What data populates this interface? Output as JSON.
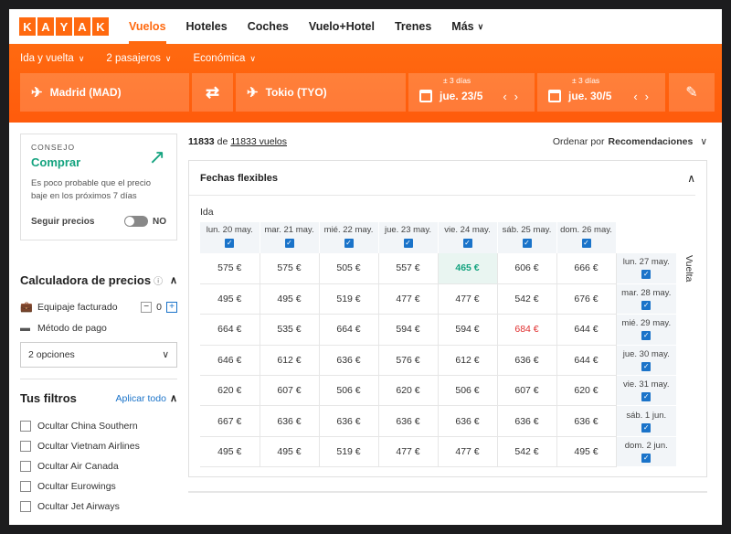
{
  "nav": {
    "logo_letters": [
      "K",
      "A",
      "Y",
      "A",
      "K"
    ],
    "links": [
      {
        "label": "Vuelos",
        "active": true
      },
      {
        "label": "Hoteles",
        "active": false
      },
      {
        "label": "Coches",
        "active": false
      },
      {
        "label": "Vuelo+Hotel",
        "active": false
      },
      {
        "label": "Trenes",
        "active": false
      },
      {
        "label": "Más",
        "active": false
      }
    ]
  },
  "search": {
    "trip_type": "Ida y vuelta",
    "passengers": "2 pasajeros",
    "cabin": "Económica",
    "origin": "Madrid (MAD)",
    "destination": "Tokio (TYO)",
    "depart_flex": "± 3 días",
    "depart_date": "jue. 23/5",
    "return_flex": "± 3 días",
    "return_date": "jue. 30/5"
  },
  "tip": {
    "label": "CONSEJO",
    "title": "Comprar",
    "text": "Es poco probable que el precio baje en los próximos 7 días",
    "follow_label": "Seguir precios",
    "follow_state": "NO"
  },
  "calculator": {
    "title": "Calculadora de precios",
    "bag_label": "Equipaje facturado",
    "bag_count": "0",
    "payment_label": "Método de pago",
    "payment_value": "2 opciones"
  },
  "filters": {
    "title": "Tus filtros",
    "apply": "Aplicar todo",
    "items": [
      "Ocultar China Southern",
      "Ocultar Vietnam Airlines",
      "Ocultar Air Canada",
      "Ocultar Eurowings",
      "Ocultar Jet Airways"
    ]
  },
  "results": {
    "count": "11833",
    "of_word": "de",
    "total": "11833 vuelos",
    "sort_label": "Ordenar por",
    "sort_value": "Recomendaciones"
  },
  "grid": {
    "title": "Fechas flexibles",
    "ida_label": "Ida",
    "vuelta_label": "Vuelta",
    "depart_dates": [
      "lun. 20 may.",
      "mar. 21 may.",
      "mié. 22 may.",
      "jue. 23 may.",
      "vie. 24 may.",
      "sáb. 25 may.",
      "dom. 26 may."
    ],
    "return_dates": [
      "lun. 27 may.",
      "mar. 28 may.",
      "mié. 29 may.",
      "jue. 30 may.",
      "vie. 31 may.",
      "sáb. 1 jun.",
      "dom. 2 jun."
    ],
    "prices": [
      [
        "575 €",
        "575 €",
        "505 €",
        "557 €",
        "465 €",
        "606 €",
        "666 €"
      ],
      [
        "495 €",
        "495 €",
        "519 €",
        "477 €",
        "477 €",
        "542 €",
        "676 €"
      ],
      [
        "664 €",
        "535 €",
        "664 €",
        "594 €",
        "594 €",
        "684 €",
        "644 €"
      ],
      [
        "646 €",
        "612 €",
        "636 €",
        "576 €",
        "612 €",
        "636 €",
        "644 €"
      ],
      [
        "620 €",
        "607 €",
        "506 €",
        "620 €",
        "506 €",
        "607 €",
        "620 €"
      ],
      [
        "667 €",
        "636 €",
        "636 €",
        "636 €",
        "636 €",
        "636 €",
        "636 €"
      ],
      [
        "495 €",
        "495 €",
        "519 €",
        "477 €",
        "477 €",
        "542 €",
        "495 €"
      ]
    ],
    "best_cell": [
      0,
      4
    ],
    "worst_cell": [
      2,
      5
    ],
    "best_color": "#14a37f",
    "worst_color": "#e02f2f"
  },
  "colors": {
    "accent": "#ff690f",
    "link": "#1a73c9"
  }
}
